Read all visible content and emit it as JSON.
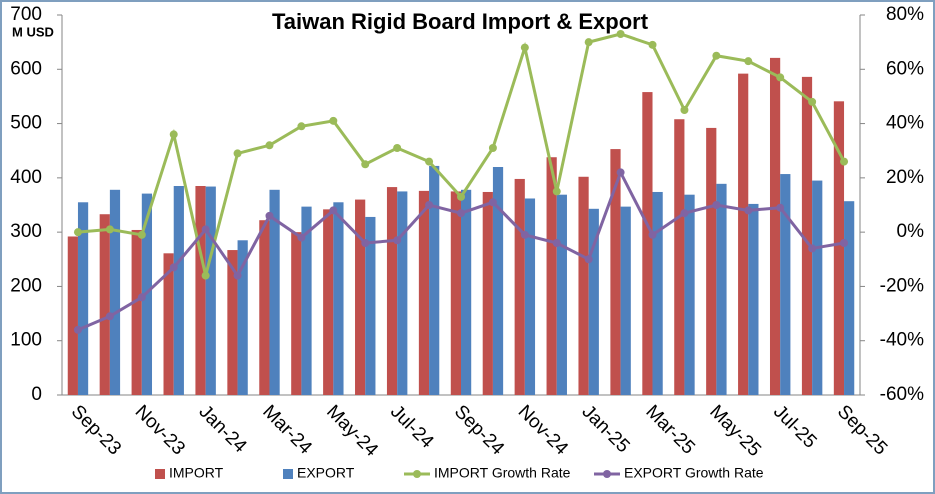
{
  "chart_data": {
    "type": "bar-line",
    "title": "Taiwan Rigid Board Import & Export",
    "y_label": "M USD",
    "categories": [
      "Sep-23",
      null,
      "Nov-23",
      null,
      "Jan-24",
      null,
      "Mar-24",
      null,
      "May-24",
      null,
      "Jul-24",
      null,
      "Sep-24",
      null,
      "Nov-24",
      null,
      "Jan-25",
      null,
      "Mar-25",
      null,
      "May-25",
      null,
      "Jul-25",
      null,
      "Sep-25"
    ],
    "series": [
      {
        "name": "IMPORT",
        "color": "#c0504d",
        "kind": "bar",
        "values": [
          292,
          333,
          304,
          261,
          385,
          267,
          322,
          300,
          342,
          360,
          383,
          376,
          375,
          374,
          398,
          438,
          402,
          453,
          558,
          508,
          492,
          592,
          621,
          586,
          541
        ]
      },
      {
        "name": "EXPORT",
        "color": "#4f81bd",
        "kind": "bar",
        "values": [
          355,
          378,
          371,
          385,
          384,
          285,
          378,
          347,
          355,
          328,
          375,
          422,
          378,
          420,
          362,
          369,
          343,
          347,
          374,
          369,
          389,
          352,
          407,
          395,
          357
        ]
      },
      {
        "name": "IMPORT Growth Rate",
        "color": "#9bbb59",
        "kind": "line",
        "axis": "y2",
        "values": [
          0,
          1,
          -1,
          36,
          -16,
          29,
          32,
          39,
          41,
          25,
          31,
          26,
          13,
          31,
          68,
          15,
          70,
          73,
          69,
          45,
          65,
          63,
          57,
          48,
          26
        ]
      },
      {
        "name": "EXPORT Growth Rate",
        "color": "#8064a2",
        "kind": "line",
        "axis": "y2",
        "values": [
          -36,
          -31,
          -24,
          -13,
          1,
          -16,
          6,
          -2,
          8,
          -4,
          -3,
          10,
          7,
          11,
          -1,
          -4,
          -10,
          22,
          -1,
          7,
          10,
          8,
          9,
          -6,
          -4
        ]
      }
    ],
    "ylim": [
      0,
      700
    ],
    "yticks": [
      0,
      100,
      200,
      300,
      400,
      500,
      600,
      700
    ],
    "y2lim": [
      -60,
      80
    ],
    "y2ticks": [
      {
        "value": -60,
        "label": "-60%"
      },
      {
        "value": -40,
        "label": "-40%"
      },
      {
        "value": -20,
        "label": "-20%"
      },
      {
        "value": 0,
        "label": "0%"
      },
      {
        "value": 20,
        "label": "20%"
      },
      {
        "value": 40,
        "label": "40%"
      },
      {
        "value": 60,
        "label": "60%"
      },
      {
        "value": 80,
        "label": "80%"
      }
    ],
    "legend": "bottom"
  }
}
